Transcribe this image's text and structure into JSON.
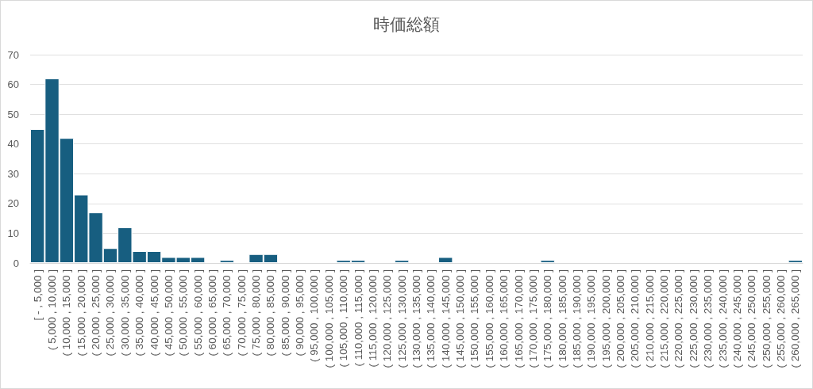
{
  "chart_data": {
    "type": "bar",
    "title": "時価総額",
    "categories": [
      "[ - , 5,000 ]",
      "( 5,000 , 10,000 ]",
      "( 10,000 , 15,000 ]",
      "( 15,000 , 20,000 ]",
      "( 20,000 , 25,000 ]",
      "( 25,000 , 30,000 ]",
      "( 30,000 , 35,000 ]",
      "( 35,000 , 40,000 ]",
      "( 40,000 , 45,000 ]",
      "( 45,000 , 50,000 ]",
      "( 50,000 , 55,000 ]",
      "( 55,000 , 60,000 ]",
      "( 60,000 , 65,000 ]",
      "( 65,000 , 70,000 ]",
      "( 70,000 , 75,000 ]",
      "( 75,000 , 80,000 ]",
      "( 80,000 , 85,000 ]",
      "( 85,000 , 90,000 ]",
      "( 90,000 , 95,000 ]",
      "( 95,000 , 100,000 ]",
      "( 100,000 , 105,000 ]",
      "( 105,000 , 110,000 ]",
      "( 110,000 , 115,000 ]",
      "( 115,000 , 120,000 ]",
      "( 120,000 , 125,000 ]",
      "( 125,000 , 130,000 ]",
      "( 130,000 , 135,000 ]",
      "( 135,000 , 140,000 ]",
      "( 140,000 , 145,000 ]",
      "( 145,000 , 150,000 ]",
      "( 150,000 , 155,000 ]",
      "( 155,000 , 160,000 ]",
      "( 160,000 , 165,000 ]",
      "( 165,000 , 170,000 ]",
      "( 170,000 , 175,000 ]",
      "( 175,000 , 180,000 ]",
      "( 180,000 , 185,000 ]",
      "( 185,000 , 190,000 ]",
      "( 190,000 , 195,000 ]",
      "( 195,000 , 200,000 ]",
      "( 200,000 , 205,000 ]",
      "( 205,000 , 210,000 ]",
      "( 210,000 , 215,000 ]",
      "( 215,000 , 220,000 ]",
      "( 220,000 , 225,000 ]",
      "( 225,000 , 230,000 ]",
      "( 230,000 , 235,000 ]",
      "( 235,000 , 240,000 ]",
      "( 240,000 , 245,000 ]",
      "( 245,000 , 250,000 ]",
      "( 250,000 , 255,000 ]",
      "( 255,000 , 260,000 ]",
      "( 260,000 , 265,000 ]"
    ],
    "values": [
      45,
      62,
      42,
      23,
      17,
      5,
      12,
      4,
      4,
      2,
      2,
      2,
      0,
      1,
      0,
      3,
      3,
      0,
      0,
      0,
      0,
      1,
      1,
      0,
      0,
      1,
      0,
      0,
      2,
      0,
      0,
      0,
      0,
      0,
      0,
      1,
      0,
      0,
      0,
      0,
      0,
      0,
      0,
      0,
      0,
      0,
      0,
      0,
      0,
      0,
      0,
      0,
      1
    ],
    "color": "#175e80",
    "ylim": [
      0,
      70
    ],
    "yticks": [
      0,
      10,
      20,
      30,
      40,
      50,
      60,
      70
    ],
    "grid": "y"
  }
}
